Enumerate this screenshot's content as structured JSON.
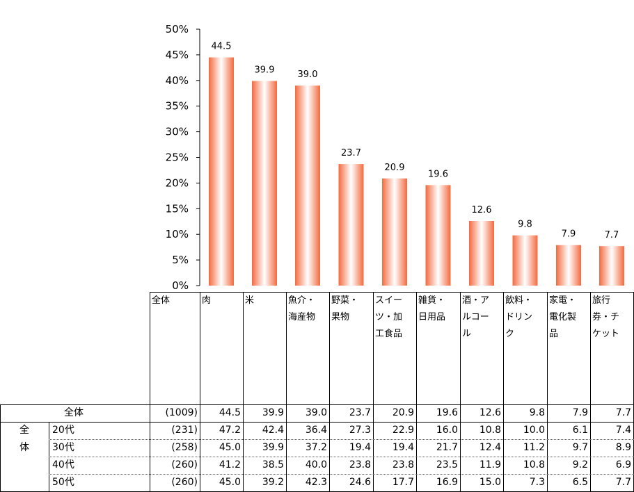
{
  "chart_data": {
    "type": "bar",
    "categories": [
      "肉",
      "米",
      "魚介・海産物",
      "野菜・果物",
      "スイーツ・加工食品",
      "雑貨・日用品",
      "酒・アルコール",
      "飲料・ドリンク",
      "家電・電化製品",
      "旅行券・チケット"
    ],
    "values": [
      44.5,
      39.9,
      39.0,
      23.7,
      20.9,
      19.6,
      12.6,
      9.8,
      7.9,
      7.7
    ],
    "data_labels": [
      "44.5",
      "39.9",
      "39.0",
      "23.7",
      "20.9",
      "19.6",
      "12.6",
      "9.8",
      "7.9",
      "7.7"
    ],
    "y_ticks": [
      "0%",
      "5%",
      "10%",
      "15%",
      "20%",
      "25%",
      "30%",
      "35%",
      "40%",
      "45%",
      "50%"
    ],
    "ylim": [
      0,
      50
    ],
    "grid": false,
    "bar_color": "#f26a3f"
  },
  "table": {
    "header_first": "全体",
    "header_lines": [
      [
        "肉"
      ],
      [
        "米"
      ],
      [
        "魚介・",
        "海産物"
      ],
      [
        "野菜・",
        "果物"
      ],
      [
        "スイー",
        "ツ・加",
        "工食品"
      ],
      [
        "雑貨・",
        "日用品"
      ],
      [
        "酒・ア",
        "ルコー",
        "ル"
      ],
      [
        "飲料・",
        "ドリン",
        "ク"
      ],
      [
        "家電・",
        "電化製",
        "品"
      ],
      [
        "旅行",
        "券・チ",
        "ケット"
      ]
    ],
    "group_label_lines": [
      "全",
      "体"
    ],
    "rows": [
      {
        "label": "全体",
        "n": "(1009)",
        "values": [
          "44.5",
          "39.9",
          "39.0",
          "23.7",
          "20.9",
          "19.6",
          "12.6",
          "9.8",
          "7.9",
          "7.7"
        ]
      },
      {
        "label": "20代",
        "n": "(231)",
        "values": [
          "47.2",
          "42.4",
          "36.4",
          "27.3",
          "22.9",
          "16.0",
          "10.8",
          "10.0",
          "6.1",
          "7.4"
        ]
      },
      {
        "label": "30代",
        "n": "(258)",
        "values": [
          "45.0",
          "39.9",
          "37.2",
          "19.4",
          "19.4",
          "21.7",
          "12.4",
          "11.2",
          "9.7",
          "8.9"
        ]
      },
      {
        "label": "40代",
        "n": "(260)",
        "values": [
          "41.2",
          "38.5",
          "40.0",
          "23.8",
          "23.8",
          "23.5",
          "11.9",
          "10.8",
          "9.2",
          "6.9"
        ]
      },
      {
        "label": "50代",
        "n": "(260)",
        "values": [
          "45.0",
          "39.2",
          "42.3",
          "24.6",
          "17.7",
          "16.9",
          "15.0",
          "7.3",
          "6.5",
          "7.7"
        ]
      }
    ]
  }
}
